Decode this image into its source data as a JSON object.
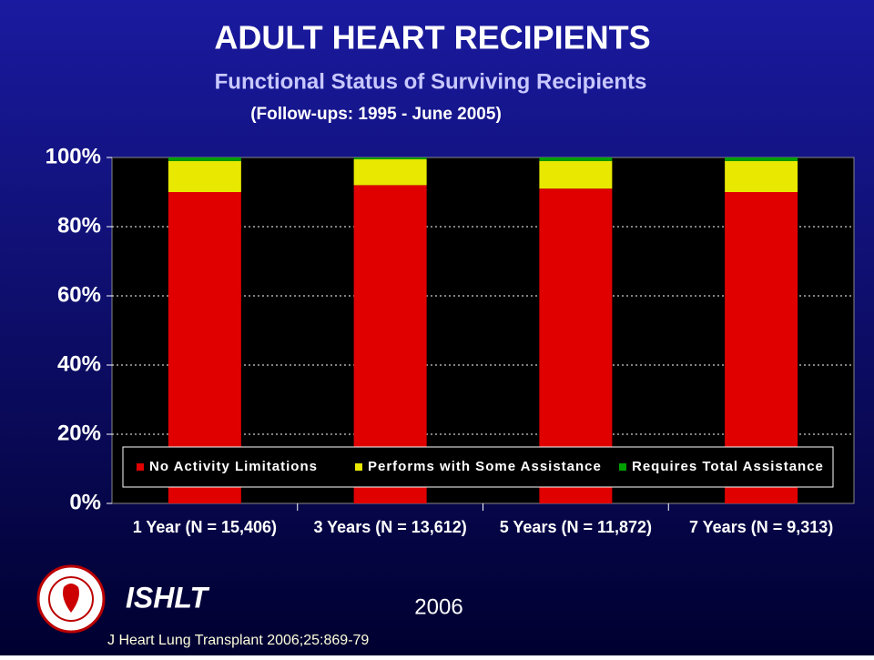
{
  "chart_data": {
    "type": "stacked-bar",
    "title": "ADULT HEART RECIPIENTS",
    "subtitle": "Functional Status of Surviving Recipients",
    "note": "(Follow-ups: 1995 - June 2005)",
    "categories": [
      "1 Year  (N = 15,406)",
      "3 Years  (N = 13,612)",
      "5 Years  (N = 11,872)",
      "7 Years  (N = 9,313)"
    ],
    "series": [
      {
        "name": "No Activity Limitations",
        "color": "#e00000",
        "values": [
          90,
          92,
          91,
          90
        ]
      },
      {
        "name": "Performs with Some Assistance",
        "color": "#e8e800",
        "values": [
          9,
          7.5,
          8,
          9
        ]
      },
      {
        "name": "Requires Total Assistance",
        "color": "#00a000",
        "values": [
          1,
          0.5,
          1,
          1
        ]
      }
    ],
    "ylim": [
      0,
      100
    ],
    "yticks": [
      {
        "value": 0,
        "label": "0%"
      },
      {
        "value": 20,
        "label": "20%"
      },
      {
        "value": 40,
        "label": "40%"
      },
      {
        "value": 60,
        "label": "60%"
      },
      {
        "value": 80,
        "label": "80%"
      },
      {
        "value": 100,
        "label": "100%"
      }
    ],
    "grid": true,
    "legend": "bottom"
  },
  "footer": {
    "org": "ISHLT",
    "year": "2006",
    "citation": "J Heart Lung Transplant 2006;25:869-79"
  }
}
